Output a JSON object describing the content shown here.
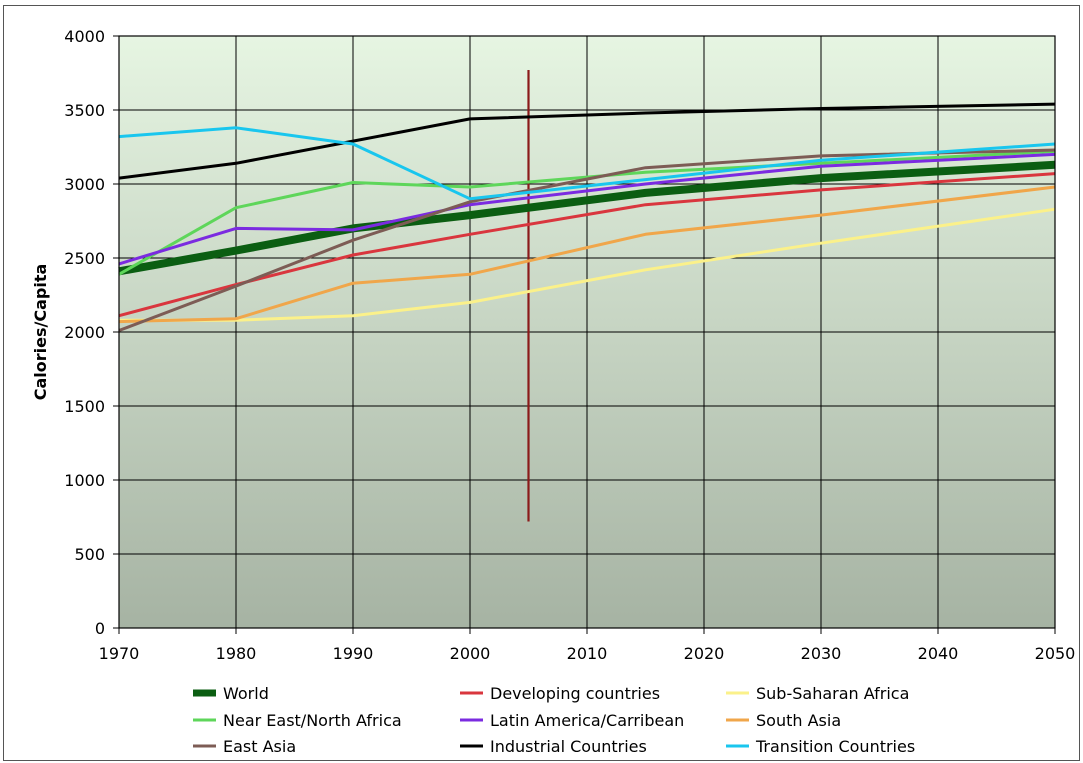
{
  "chart_data": {
    "type": "line",
    "title": "",
    "xlabel": "",
    "ylabel": "Calories/Capita",
    "xlim": [
      1970,
      2050
    ],
    "ylim": [
      0,
      4000
    ],
    "x_ticks": [
      1970,
      1980,
      1990,
      2000,
      2010,
      2020,
      2030,
      2040,
      2050
    ],
    "y_ticks": [
      0,
      500,
      1000,
      1500,
      2000,
      2500,
      3000,
      3500,
      4000
    ],
    "grid": true,
    "legend_position": "bottom",
    "background": {
      "top": "#e6f5e2",
      "bottom": "#a6b3a3"
    },
    "annotations": [
      {
        "type": "vertical-line",
        "x": 2005,
        "y_from": 720,
        "y_to": 3770,
        "color": "#8b1a1a"
      }
    ],
    "series": [
      {
        "name": "World",
        "color": "#0b5e12",
        "width": 8,
        "points": [
          [
            1970,
            2410
          ],
          [
            1980,
            2550
          ],
          [
            1990,
            2700
          ],
          [
            2000,
            2790
          ],
          [
            2015,
            2940
          ],
          [
            2030,
            3040
          ],
          [
            2050,
            3130
          ]
        ]
      },
      {
        "name": "Developing countries",
        "color": "#d9363e",
        "width": 3,
        "points": [
          [
            1970,
            2110
          ],
          [
            1980,
            2320
          ],
          [
            1990,
            2520
          ],
          [
            2000,
            2660
          ],
          [
            2015,
            2860
          ],
          [
            2030,
            2960
          ],
          [
            2050,
            3070
          ]
        ]
      },
      {
        "name": "Sub-Saharan Africa",
        "color": "#fbf18a",
        "width": 3,
        "points": [
          [
            1970,
            2080
          ],
          [
            1980,
            2080
          ],
          [
            1990,
            2110
          ],
          [
            2000,
            2200
          ],
          [
            2015,
            2420
          ],
          [
            2030,
            2600
          ],
          [
            2050,
            2830
          ]
        ]
      },
      {
        "name": "Near East/North Africa",
        "color": "#5ed65a",
        "width": 3,
        "points": [
          [
            1970,
            2390
          ],
          [
            1980,
            2840
          ],
          [
            1990,
            3010
          ],
          [
            2000,
            2980
          ],
          [
            2015,
            3080
          ],
          [
            2030,
            3140
          ],
          [
            2050,
            3220
          ]
        ]
      },
      {
        "name": "Latin America/Carribean",
        "color": "#7b2be0",
        "width": 3,
        "points": [
          [
            1970,
            2460
          ],
          [
            1980,
            2700
          ],
          [
            1990,
            2690
          ],
          [
            2000,
            2860
          ],
          [
            2015,
            3000
          ],
          [
            2030,
            3120
          ],
          [
            2050,
            3200
          ]
        ]
      },
      {
        "name": "South Asia",
        "color": "#f0a64a",
        "width": 3,
        "points": [
          [
            1970,
            2070
          ],
          [
            1980,
            2090
          ],
          [
            1990,
            2330
          ],
          [
            2000,
            2390
          ],
          [
            2015,
            2660
          ],
          [
            2030,
            2790
          ],
          [
            2050,
            2980
          ]
        ]
      },
      {
        "name": "East Asia",
        "color": "#7d5c55",
        "width": 3,
        "points": [
          [
            1970,
            2010
          ],
          [
            1980,
            2310
          ],
          [
            1990,
            2620
          ],
          [
            2000,
            2880
          ],
          [
            2015,
            3110
          ],
          [
            2030,
            3190
          ],
          [
            2050,
            3230
          ]
        ]
      },
      {
        "name": "Industrial Countries",
        "color": "#000000",
        "width": 3,
        "points": [
          [
            1970,
            3040
          ],
          [
            1980,
            3140
          ],
          [
            1990,
            3290
          ],
          [
            2000,
            3440
          ],
          [
            2015,
            3480
          ],
          [
            2030,
            3510
          ],
          [
            2050,
            3540
          ]
        ]
      },
      {
        "name": "Transition Countries",
        "color": "#19c6ee",
        "width": 3,
        "points": [
          [
            1970,
            3320
          ],
          [
            1980,
            3380
          ],
          [
            1990,
            3270
          ],
          [
            2000,
            2900
          ],
          [
            2015,
            3030
          ],
          [
            2030,
            3160
          ],
          [
            2050,
            3270
          ]
        ]
      }
    ]
  }
}
